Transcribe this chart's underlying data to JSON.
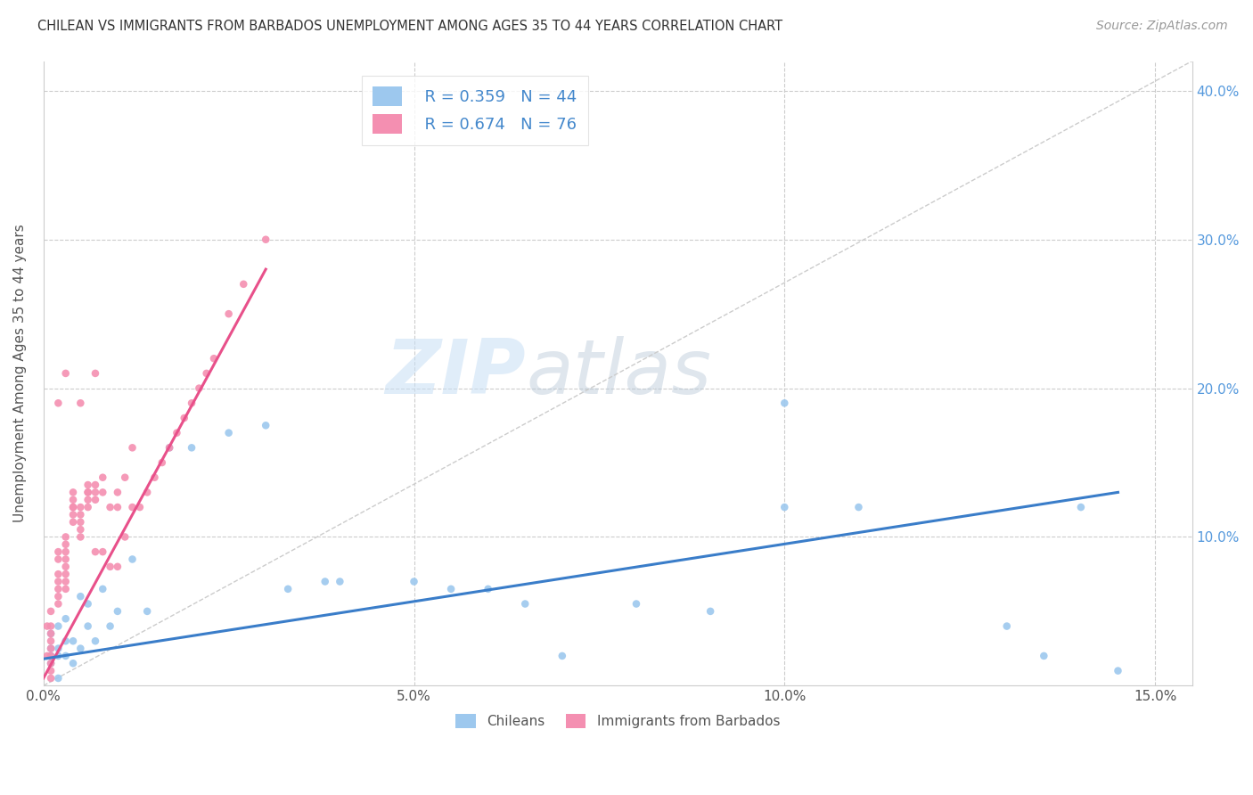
{
  "title": "CHILEAN VS IMMIGRANTS FROM BARBADOS UNEMPLOYMENT AMONG AGES 35 TO 44 YEARS CORRELATION CHART",
  "source": "Source: ZipAtlas.com",
  "ylabel": "Unemployment Among Ages 35 to 44 years",
  "xlim": [
    0.0,
    0.155
  ],
  "ylim": [
    0.0,
    0.42
  ],
  "r_chilean": 0.359,
  "n_chilean": 44,
  "r_barbados": 0.674,
  "n_barbados": 76,
  "chilean_color": "#9DC8EE",
  "barbados_color": "#F48FB1",
  "line_chilean_color": "#3A7DC9",
  "line_barbados_color": "#E8508A",
  "diag_color": "#cccccc",
  "watermark_zip": "ZIP",
  "watermark_atlas": "atlas",
  "chileans_x": [
    0.001,
    0.001,
    0.001,
    0.001,
    0.002,
    0.002,
    0.002,
    0.002,
    0.003,
    0.003,
    0.003,
    0.004,
    0.004,
    0.005,
    0.005,
    0.006,
    0.006,
    0.007,
    0.008,
    0.009,
    0.01,
    0.012,
    0.014,
    0.017,
    0.02,
    0.025,
    0.03,
    0.033,
    0.038,
    0.04,
    0.05,
    0.055,
    0.06,
    0.065,
    0.07,
    0.08,
    0.09,
    0.1,
    0.1,
    0.11,
    0.13,
    0.14,
    0.135,
    0.145
  ],
  "chileans_y": [
    0.035,
    0.025,
    0.02,
    0.015,
    0.04,
    0.025,
    0.02,
    0.005,
    0.03,
    0.045,
    0.02,
    0.03,
    0.015,
    0.06,
    0.025,
    0.055,
    0.04,
    0.03,
    0.065,
    0.04,
    0.05,
    0.085,
    0.05,
    0.16,
    0.16,
    0.17,
    0.175,
    0.065,
    0.07,
    0.07,
    0.07,
    0.065,
    0.065,
    0.055,
    0.02,
    0.055,
    0.05,
    0.19,
    0.12,
    0.12,
    0.04,
    0.12,
    0.02,
    0.01
  ],
  "barbados_x": [
    0.0005,
    0.0005,
    0.001,
    0.001,
    0.001,
    0.001,
    0.001,
    0.001,
    0.001,
    0.001,
    0.001,
    0.002,
    0.002,
    0.002,
    0.002,
    0.002,
    0.002,
    0.002,
    0.003,
    0.003,
    0.003,
    0.003,
    0.003,
    0.003,
    0.003,
    0.003,
    0.004,
    0.004,
    0.004,
    0.004,
    0.004,
    0.005,
    0.005,
    0.005,
    0.005,
    0.005,
    0.006,
    0.006,
    0.006,
    0.006,
    0.007,
    0.007,
    0.007,
    0.007,
    0.008,
    0.008,
    0.008,
    0.009,
    0.009,
    0.01,
    0.01,
    0.01,
    0.011,
    0.011,
    0.012,
    0.012,
    0.013,
    0.014,
    0.015,
    0.016,
    0.017,
    0.018,
    0.019,
    0.02,
    0.021,
    0.022,
    0.023,
    0.025,
    0.027,
    0.03,
    0.005,
    0.007,
    0.002,
    0.003,
    0.004,
    0.006
  ],
  "barbados_y": [
    0.04,
    0.02,
    0.05,
    0.04,
    0.035,
    0.03,
    0.025,
    0.02,
    0.015,
    0.01,
    0.005,
    0.09,
    0.085,
    0.075,
    0.07,
    0.065,
    0.06,
    0.055,
    0.1,
    0.095,
    0.09,
    0.085,
    0.08,
    0.075,
    0.07,
    0.065,
    0.13,
    0.125,
    0.12,
    0.115,
    0.11,
    0.12,
    0.115,
    0.11,
    0.105,
    0.1,
    0.135,
    0.13,
    0.125,
    0.12,
    0.135,
    0.13,
    0.125,
    0.09,
    0.14,
    0.13,
    0.09,
    0.12,
    0.08,
    0.13,
    0.12,
    0.08,
    0.14,
    0.1,
    0.16,
    0.12,
    0.12,
    0.13,
    0.14,
    0.15,
    0.16,
    0.17,
    0.18,
    0.19,
    0.2,
    0.21,
    0.22,
    0.25,
    0.27,
    0.3,
    0.19,
    0.21,
    0.19,
    0.21,
    0.12,
    0.13
  ],
  "line_ba_x0": 0.0,
  "line_ba_y0": 0.005,
  "line_ba_x1": 0.03,
  "line_ba_y1": 0.28,
  "line_ch_x0": 0.0,
  "line_ch_y0": 0.018,
  "line_ch_x1": 0.145,
  "line_ch_y1": 0.13
}
